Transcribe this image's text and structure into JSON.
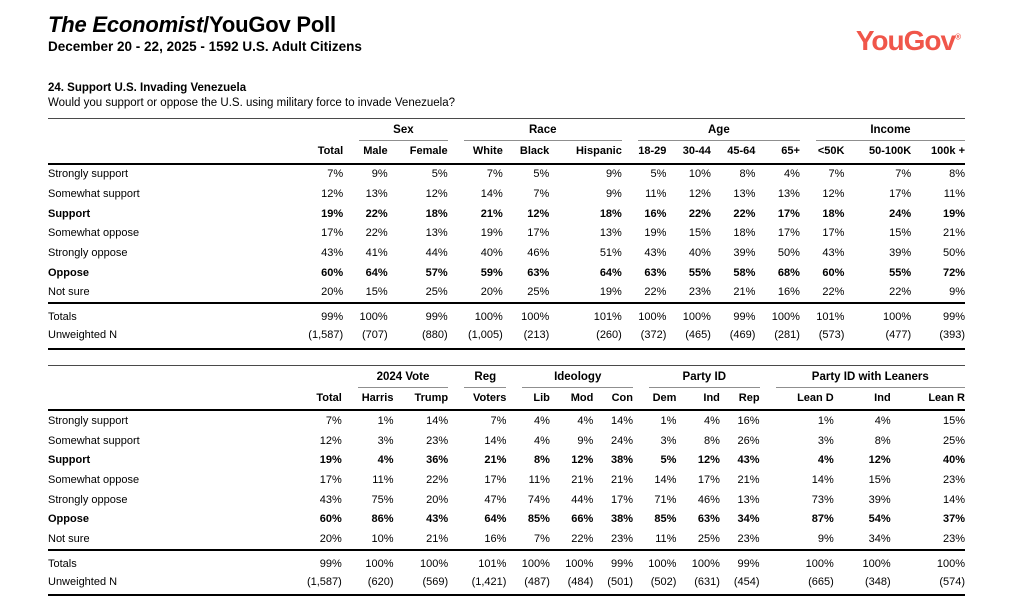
{
  "header": {
    "title_italic": "The Economist",
    "title_rest": "/YouGov Poll",
    "subtitle": "December 20 - 22, 2025 - 1592 U.S. Adult Citizens",
    "logo_text": "YouGov",
    "logo_reg": "®",
    "logo_color": "#F0564A"
  },
  "question": {
    "title": "24. Support U.S. Invading Venezuela",
    "text": "Would you support or oppose the U.S. using military force to invade Venezuela?"
  },
  "tables": [
    {
      "groups": [
        {
          "label": "",
          "cols": [
            "Total"
          ]
        },
        {
          "label": "Sex",
          "cols": [
            "Male",
            "Female"
          ]
        },
        {
          "label": "Race",
          "cols": [
            "White",
            "Black",
            "Hispanic"
          ]
        },
        {
          "label": "Age",
          "cols": [
            "18-29",
            "30-44",
            "45-64",
            "65+"
          ]
        },
        {
          "label": "Income",
          "cols": [
            "<50K",
            "50-100K",
            "100k +"
          ]
        }
      ],
      "rows": [
        {
          "label": "Strongly support",
          "bold": false,
          "values": [
            "7%",
            "9%",
            "5%",
            "7%",
            "5%",
            "9%",
            "5%",
            "10%",
            "8%",
            "4%",
            "7%",
            "7%",
            "8%"
          ]
        },
        {
          "label": "Somewhat support",
          "bold": false,
          "values": [
            "12%",
            "13%",
            "12%",
            "14%",
            "7%",
            "9%",
            "11%",
            "12%",
            "13%",
            "13%",
            "12%",
            "17%",
            "11%"
          ]
        },
        {
          "label": "Support",
          "bold": true,
          "values": [
            "19%",
            "22%",
            "18%",
            "21%",
            "12%",
            "18%",
            "16%",
            "22%",
            "22%",
            "17%",
            "18%",
            "24%",
            "19%"
          ]
        },
        {
          "label": "Somewhat oppose",
          "bold": false,
          "values": [
            "17%",
            "22%",
            "13%",
            "19%",
            "17%",
            "13%",
            "19%",
            "15%",
            "18%",
            "17%",
            "17%",
            "15%",
            "21%"
          ]
        },
        {
          "label": "Strongly oppose",
          "bold": false,
          "values": [
            "43%",
            "41%",
            "44%",
            "40%",
            "46%",
            "51%",
            "43%",
            "40%",
            "39%",
            "50%",
            "43%",
            "39%",
            "50%"
          ]
        },
        {
          "label": "Oppose",
          "bold": true,
          "values": [
            "60%",
            "64%",
            "57%",
            "59%",
            "63%",
            "64%",
            "63%",
            "55%",
            "58%",
            "68%",
            "60%",
            "55%",
            "72%"
          ]
        },
        {
          "label": "Not sure",
          "bold": false,
          "values": [
            "20%",
            "15%",
            "25%",
            "20%",
            "25%",
            "19%",
            "22%",
            "23%",
            "21%",
            "16%",
            "22%",
            "22%",
            "9%"
          ]
        }
      ],
      "totals": {
        "label": "Totals",
        "values": [
          "99%",
          "100%",
          "99%",
          "100%",
          "100%",
          "101%",
          "100%",
          "100%",
          "99%",
          "100%",
          "101%",
          "100%",
          "99%"
        ]
      },
      "unweighted": {
        "label": "Unweighted N",
        "values": [
          "(1,587)",
          "(707)",
          "(880)",
          "(1,005)",
          "(213)",
          "(260)",
          "(372)",
          "(465)",
          "(469)",
          "(281)",
          "(573)",
          "(477)",
          "(393)"
        ]
      }
    },
    {
      "groups": [
        {
          "label": "",
          "cols": [
            "Total"
          ]
        },
        {
          "label": "2024 Vote",
          "cols": [
            "Harris",
            "Trump"
          ]
        },
        {
          "label": "Reg",
          "cols": [
            "Voters"
          ]
        },
        {
          "label": "Ideology",
          "cols": [
            "Lib",
            "Mod",
            "Con"
          ]
        },
        {
          "label": "Party ID",
          "cols": [
            "Dem",
            "Ind",
            "Rep"
          ]
        },
        {
          "label": "Party ID with Leaners",
          "cols": [
            "Lean D",
            "Ind",
            "Lean R"
          ]
        }
      ],
      "rows": [
        {
          "label": "Strongly support",
          "bold": false,
          "values": [
            "7%",
            "1%",
            "14%",
            "7%",
            "4%",
            "4%",
            "14%",
            "1%",
            "4%",
            "16%",
            "1%",
            "4%",
            "15%"
          ]
        },
        {
          "label": "Somewhat support",
          "bold": false,
          "values": [
            "12%",
            "3%",
            "23%",
            "14%",
            "4%",
            "9%",
            "24%",
            "3%",
            "8%",
            "26%",
            "3%",
            "8%",
            "25%"
          ]
        },
        {
          "label": "Support",
          "bold": true,
          "values": [
            "19%",
            "4%",
            "36%",
            "21%",
            "8%",
            "12%",
            "38%",
            "5%",
            "12%",
            "43%",
            "4%",
            "12%",
            "40%"
          ]
        },
        {
          "label": "Somewhat oppose",
          "bold": false,
          "values": [
            "17%",
            "11%",
            "22%",
            "17%",
            "11%",
            "21%",
            "21%",
            "14%",
            "17%",
            "21%",
            "14%",
            "15%",
            "23%"
          ]
        },
        {
          "label": "Strongly oppose",
          "bold": false,
          "values": [
            "43%",
            "75%",
            "20%",
            "47%",
            "74%",
            "44%",
            "17%",
            "71%",
            "46%",
            "13%",
            "73%",
            "39%",
            "14%"
          ]
        },
        {
          "label": "Oppose",
          "bold": true,
          "values": [
            "60%",
            "86%",
            "43%",
            "64%",
            "85%",
            "66%",
            "38%",
            "85%",
            "63%",
            "34%",
            "87%",
            "54%",
            "37%"
          ]
        },
        {
          "label": "Not sure",
          "bold": false,
          "values": [
            "20%",
            "10%",
            "21%",
            "16%",
            "7%",
            "22%",
            "23%",
            "11%",
            "25%",
            "23%",
            "9%",
            "34%",
            "23%"
          ]
        }
      ],
      "totals": {
        "label": "Totals",
        "values": [
          "99%",
          "100%",
          "100%",
          "101%",
          "100%",
          "100%",
          "99%",
          "100%",
          "100%",
          "99%",
          "100%",
          "100%",
          "100%"
        ]
      },
      "unweighted": {
        "label": "Unweighted N",
        "values": [
          "(1,587)",
          "(620)",
          "(569)",
          "(1,421)",
          "(487)",
          "(484)",
          "(501)",
          "(502)",
          "(631)",
          "(454)",
          "(665)",
          "(348)",
          "(574)"
        ]
      }
    }
  ]
}
